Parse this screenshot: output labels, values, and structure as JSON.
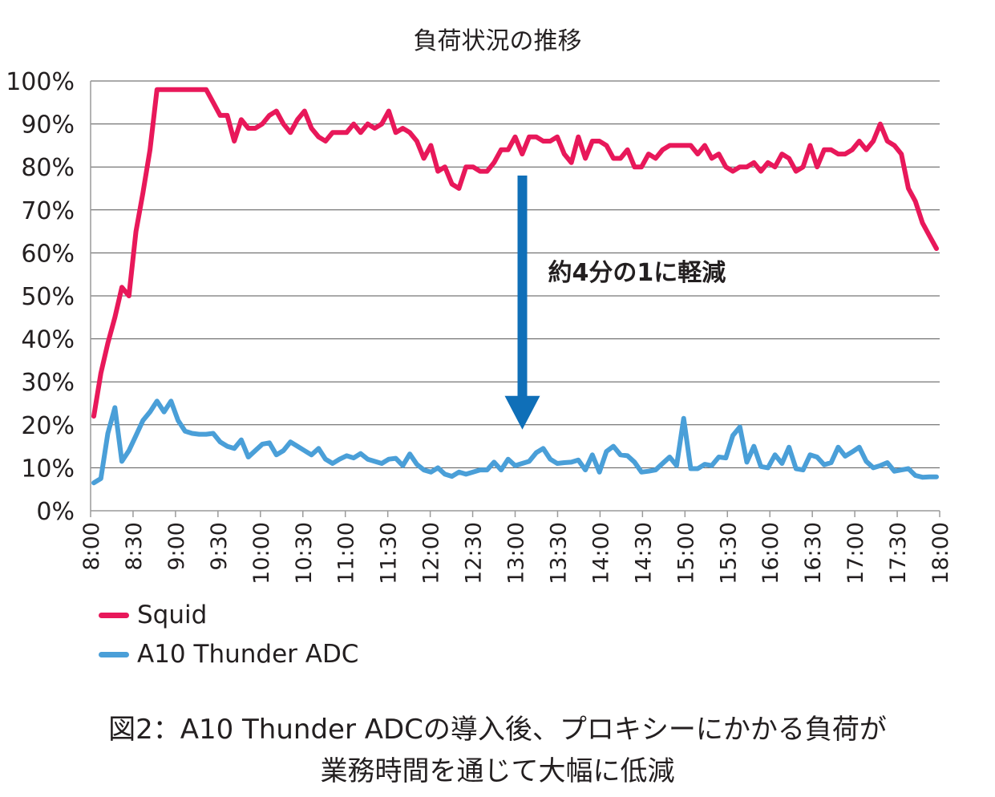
{
  "chart_data": {
    "type": "line",
    "title": "負荷状況の推移",
    "ylim": [
      0,
      100
    ],
    "yticks": [
      "0%",
      "10%",
      "20%",
      "30%",
      "40%",
      "50%",
      "60%",
      "70%",
      "80%",
      "90%",
      "100%"
    ],
    "xticks": [
      "8:00",
      "8:30",
      "9:00",
      "9:30",
      "10:00",
      "10:30",
      "11:00",
      "11:30",
      "12:00",
      "12:30",
      "13:00",
      "13:30",
      "14:00",
      "14:30",
      "15:00",
      "15:30",
      "16:00",
      "16:30",
      "17:00",
      "17:30",
      "18:00"
    ],
    "grid": true,
    "legend_position": "bottom-left",
    "series": [
      {
        "name": "Squid",
        "color": "#e8185a",
        "values": [
          22,
          32,
          39,
          45,
          52,
          50,
          65,
          74,
          84,
          98,
          98,
          98,
          98,
          98,
          98,
          98,
          98,
          95,
          92,
          92,
          86,
          91,
          89,
          89,
          90,
          92,
          93,
          90,
          88,
          91,
          93,
          89,
          87,
          86,
          88,
          88,
          88,
          90,
          88,
          90,
          89,
          90,
          93,
          88,
          89,
          88,
          86,
          82,
          85,
          79,
          80,
          76,
          75,
          80,
          80,
          79,
          79,
          81,
          84,
          84,
          87,
          83,
          87,
          87,
          86,
          86,
          87,
          83,
          81,
          87,
          82,
          86,
          86,
          85,
          82,
          82,
          84,
          80,
          80,
          83,
          82,
          84,
          85,
          85,
          85,
          85,
          83,
          85,
          82,
          83,
          80,
          79,
          80,
          80,
          81,
          79,
          81,
          80,
          83,
          82,
          79,
          80,
          85,
          80,
          84,
          84,
          83,
          83,
          84,
          86,
          84,
          86,
          90,
          86,
          85,
          83,
          75,
          72,
          67,
          64,
          61
        ]
      },
      {
        "name": "A10 Thunder ADC",
        "color": "#4a9fd8",
        "values": [
          6.5,
          7.5,
          18,
          24,
          11.5,
          14,
          17.5,
          21,
          23,
          25.5,
          23,
          25.5,
          21,
          18.5,
          18,
          17.8,
          17.8,
          18,
          16,
          15,
          14.5,
          16.5,
          12.5,
          14,
          15.5,
          15.8,
          13,
          14,
          16,
          15,
          14,
          13,
          14.5,
          12,
          11,
          12,
          12.8,
          12.3,
          13.3,
          12,
          11.5,
          11,
          12,
          12.2,
          10.5,
          13.2,
          10.8,
          9.5,
          9,
          10,
          8.5,
          8,
          9,
          8.5,
          9,
          9.5,
          9.5,
          11.3,
          9.5,
          12,
          10.5,
          11,
          11.5,
          13.5,
          14.5,
          12,
          11,
          11.2,
          11.3,
          11.8,
          9.5,
          13,
          9,
          13.8,
          15,
          13,
          12.8,
          11.3,
          9,
          9.2,
          9.5,
          11,
          12.5,
          10.5,
          21.5,
          9.8,
          9.8,
          10.8,
          10.5,
          12.5,
          12.3,
          17.5,
          19.5,
          11.3,
          15,
          10.3,
          10,
          13,
          11,
          14.8,
          9.8,
          9.5,
          13,
          12.5,
          10.7,
          11.2,
          14.8,
          12.7,
          13.7,
          14.8,
          11.5,
          10,
          10.5,
          11.2,
          9.2,
          9.5,
          9.8,
          8.2,
          7.8,
          7.9,
          7.9
        ]
      }
    ],
    "annotation": {
      "text": "約4分の1に軽減",
      "arrow_from": [
        "13:00",
        78
      ],
      "arrow_to": [
        "13:00",
        20
      ],
      "arrow_color": "#0f6fb8"
    },
    "axis_color": "#9a9a9a",
    "grid_color": "#555555"
  },
  "caption": {
    "line1": "図2：A10 Thunder ADCの導入後、プロキシーにかかる負荷が",
    "line2": "業務時間を通じて大幅に低減"
  }
}
